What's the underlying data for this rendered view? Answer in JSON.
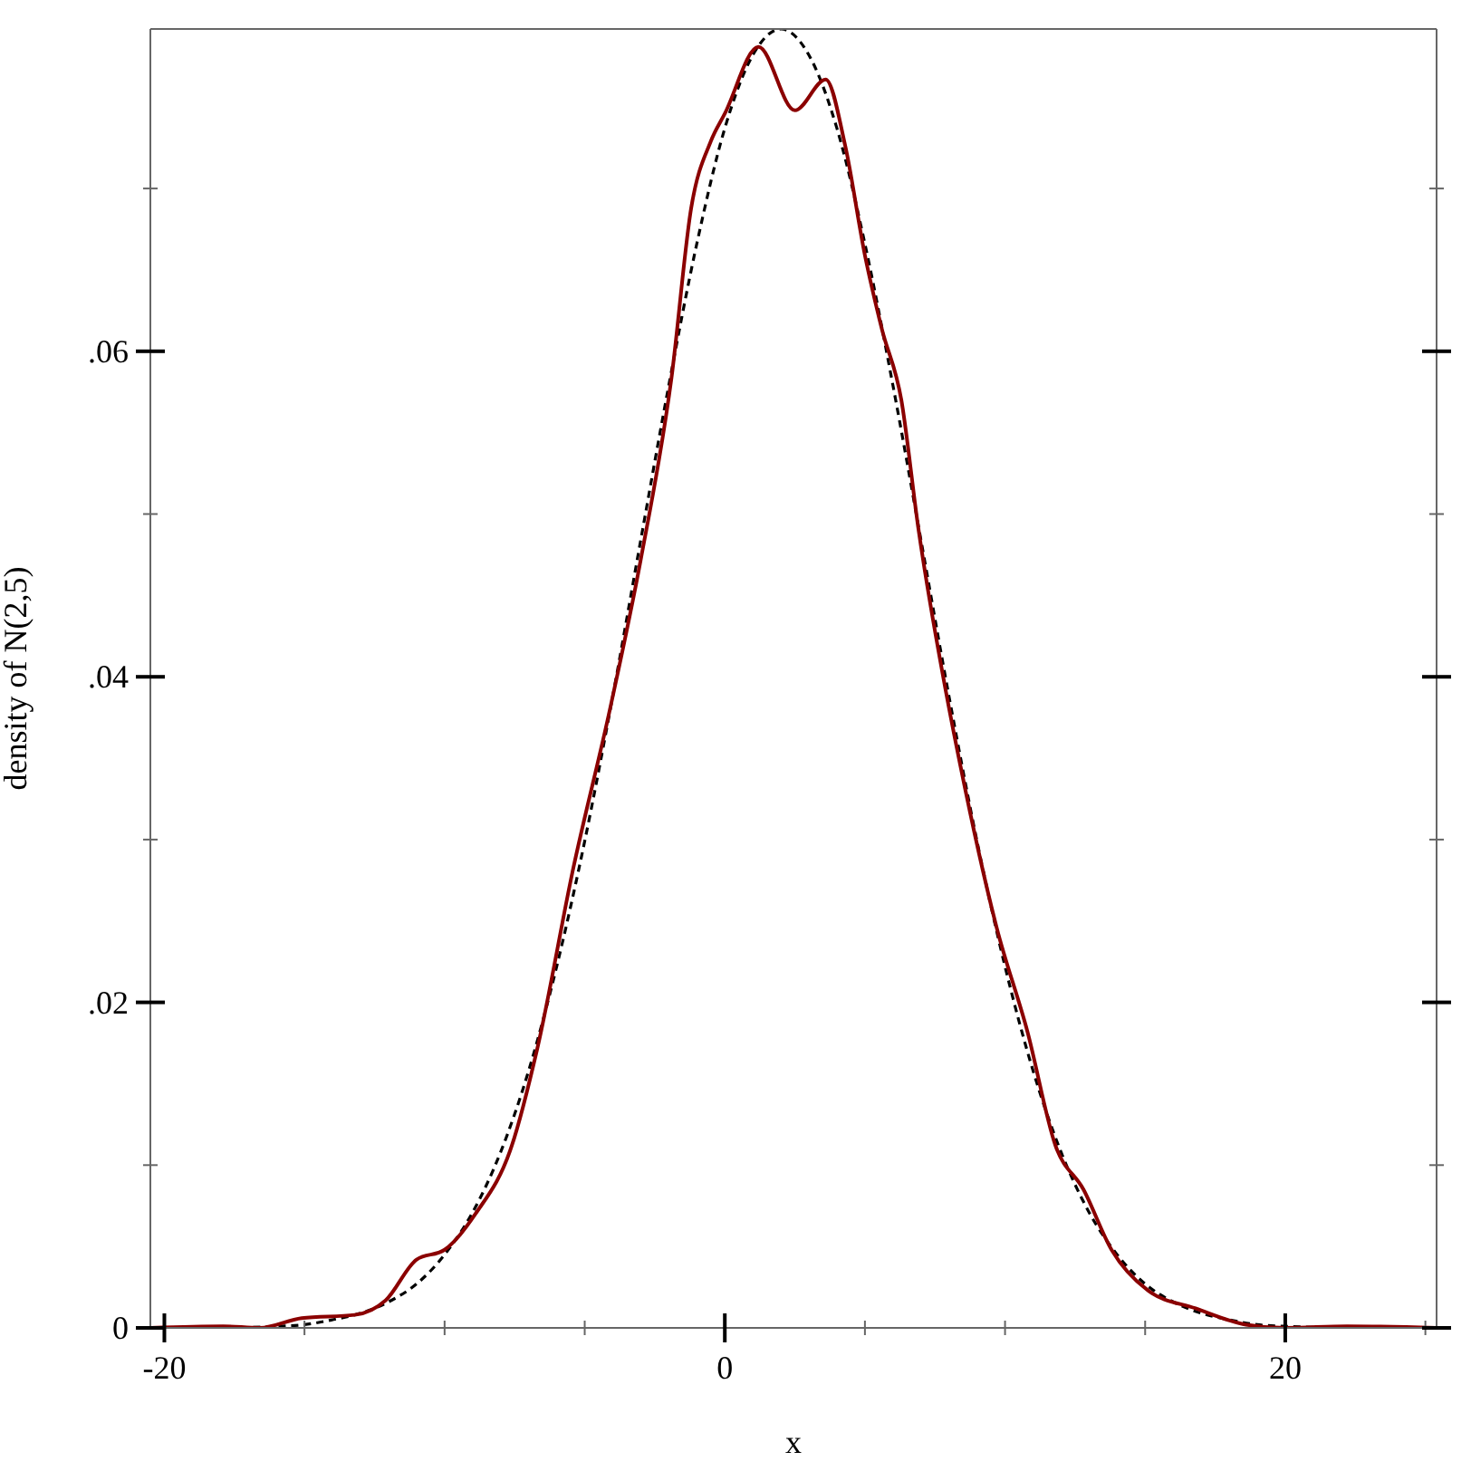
{
  "chart_data": {
    "type": "line",
    "xlabel": "x",
    "ylabel": "density of N(2,5)",
    "xlim": [
      -20.5,
      25.4
    ],
    "ylim": [
      0,
      0.0798
    ],
    "xticks": [
      -20,
      {
        "value": -15,
        "label": null
      },
      {
        "value": -10,
        "label": null
      },
      {
        "value": -5,
        "label": null
      },
      0,
      {
        "value": 5,
        "label": null
      },
      {
        "value": 10,
        "label": null
      },
      {
        "value": 15,
        "label": null
      },
      20,
      {
        "value": 25,
        "label": null
      }
    ],
    "yticks": [
      0,
      {
        "value": 0.01,
        "label": null
      },
      {
        "value": 0.02,
        "label": ".02"
      },
      {
        "value": 0.03,
        "label": null
      },
      {
        "value": 0.04,
        "label": ".04"
      },
      {
        "value": 0.05,
        "label": null
      },
      {
        "value": 0.06,
        "label": ".06"
      },
      {
        "value": 0.07,
        "label": null
      }
    ],
    "marker": "none",
    "series": [
      {
        "color": "#000000",
        "line_style": "dashed",
        "x": [
          -20,
          -18,
          -16,
          -15,
          -14,
          -13,
          -12,
          -11,
          -10,
          -9,
          -8,
          -7,
          -6,
          -5,
          -4,
          -3,
          -2,
          -1,
          0,
          1,
          2,
          3,
          4,
          5,
          6,
          7,
          8,
          9,
          10,
          11,
          12,
          13,
          14,
          15,
          16,
          17,
          18,
          19,
          20,
          22,
          25
        ],
        "values": [
          0,
          0,
          0.0001,
          0.0002,
          0.0005,
          0.0009,
          0.0016,
          0.0027,
          0.0045,
          0.0071,
          0.0108,
          0.0158,
          0.0222,
          0.0299,
          0.0388,
          0.0484,
          0.0579,
          0.0666,
          0.0737,
          0.0782,
          0.0798,
          0.0782,
          0.0737,
          0.0666,
          0.0579,
          0.0484,
          0.0388,
          0.0299,
          0.0222,
          0.0158,
          0.0108,
          0.0071,
          0.0045,
          0.0027,
          0.0016,
          0.0009,
          0.0005,
          0.0002,
          0.0001,
          0,
          0
        ]
      },
      {
        "color": "#8b0000",
        "line_style": "solid",
        "x": [
          -20.5,
          -17.9,
          -16.6,
          -15.1,
          -13.2,
          -12.1,
          -11,
          -10,
          -8.9,
          -7.6,
          -6.7,
          -5.4,
          -4.1,
          -3,
          -1.9,
          -1.2,
          -0.5,
          0,
          1.2,
          2.5,
          3.6,
          4.3,
          5,
          5.6,
          6.3,
          6.9,
          7.9,
          8.4,
          9.7,
          10.8,
          11.8,
          12.8,
          13.8,
          15.1,
          16.8,
          18.6,
          20,
          22.2,
          25.4
        ],
        "values": [
          0,
          0.0001,
          0,
          0.0006,
          0.0008,
          0.0017,
          0.0042,
          0.0048,
          0.007,
          0.0112,
          0.0171,
          0.0283,
          0.038,
          0.0472,
          0.0584,
          0.0688,
          0.0729,
          0.0746,
          0.0787,
          0.0748,
          0.0767,
          0.0726,
          0.0659,
          0.0614,
          0.057,
          0.0492,
          0.039,
          0.0346,
          0.0246,
          0.0182,
          0.0112,
          0.0085,
          0.0048,
          0.0023,
          0.0012,
          0.0002,
          0,
          0.0001,
          0
        ]
      }
    ]
  }
}
